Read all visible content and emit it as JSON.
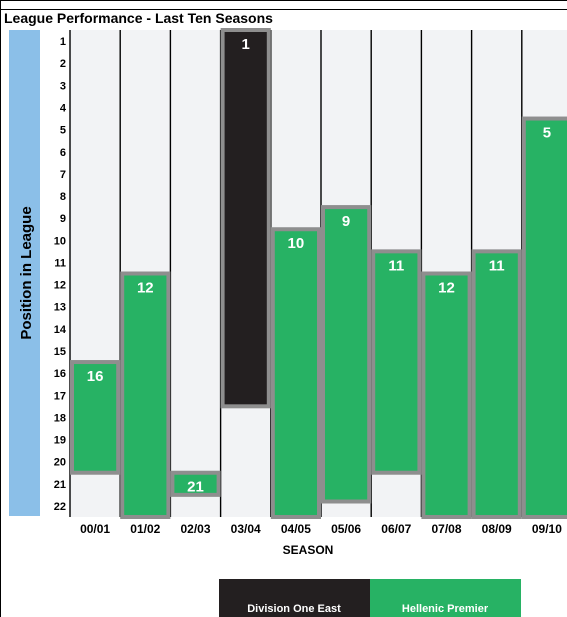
{
  "chart_data": {
    "type": "bar",
    "title": "League Performance - Last Ten Seasons",
    "xlabel": "SEASON",
    "ylabel": "Position in League",
    "y_ticks": [
      "1",
      "2",
      "3",
      "4",
      "5",
      "6",
      "7",
      "8",
      "9",
      "10",
      "11",
      "12",
      "13",
      "14",
      "15",
      "16",
      "17",
      "18",
      "19",
      "20",
      "21",
      "22"
    ],
    "categories": [
      "00/01",
      "01/02",
      "02/03",
      "03/04",
      "04/05",
      "05/06",
      "06/07",
      "07/08",
      "08/09",
      "09/10"
    ],
    "bars": [
      {
        "season": "00/01",
        "label": "16",
        "top": 15.5,
        "bottom": 20.5,
        "division": "Hellenic Premier"
      },
      {
        "season": "01/02",
        "label": "12",
        "top": 11.5,
        "bottom": 22.5,
        "division": "Hellenic Premier"
      },
      {
        "season": "02/03",
        "label": "21",
        "top": 20.5,
        "bottom": 21.5,
        "division": "Hellenic Premier"
      },
      {
        "season": "03/04",
        "label": "1",
        "top": 0.5,
        "bottom": 17.5,
        "division": "Division One East"
      },
      {
        "season": "04/05",
        "label": "10",
        "top": 9.5,
        "bottom": 22.5,
        "division": "Hellenic Premier"
      },
      {
        "season": "05/06",
        "label": "9",
        "top": 8.5,
        "bottom": 21.8,
        "division": "Hellenic Premier"
      },
      {
        "season": "06/07",
        "label": "11",
        "top": 10.5,
        "bottom": 20.5,
        "division": "Hellenic Premier"
      },
      {
        "season": "07/08",
        "label": "12",
        "top": 11.5,
        "bottom": 22.5,
        "division": "Hellenic Premier"
      },
      {
        "season": "08/09",
        "label": "11",
        "top": 10.5,
        "bottom": 22.5,
        "division": "Hellenic Premier"
      },
      {
        "season": "09/10",
        "label": "5",
        "top": 4.5,
        "bottom": 22.5,
        "division": "Hellenic Premier"
      }
    ],
    "ylim": [
      0.5,
      22.5
    ],
    "y_inverted": true,
    "grid": "vertical column separators",
    "legend": [
      {
        "name": "Division One East",
        "color": "#231f20"
      },
      {
        "name": "Hellenic Premier",
        "color": "#27b264"
      }
    ],
    "legend_placement": "bottom"
  },
  "colors": {
    "hellenic": "#27b264",
    "division_one": "#231f20",
    "bar_border": "#8e8e8e",
    "plot_bg": "#f2f3f5",
    "ylabel_band": "#8bbfe8"
  }
}
